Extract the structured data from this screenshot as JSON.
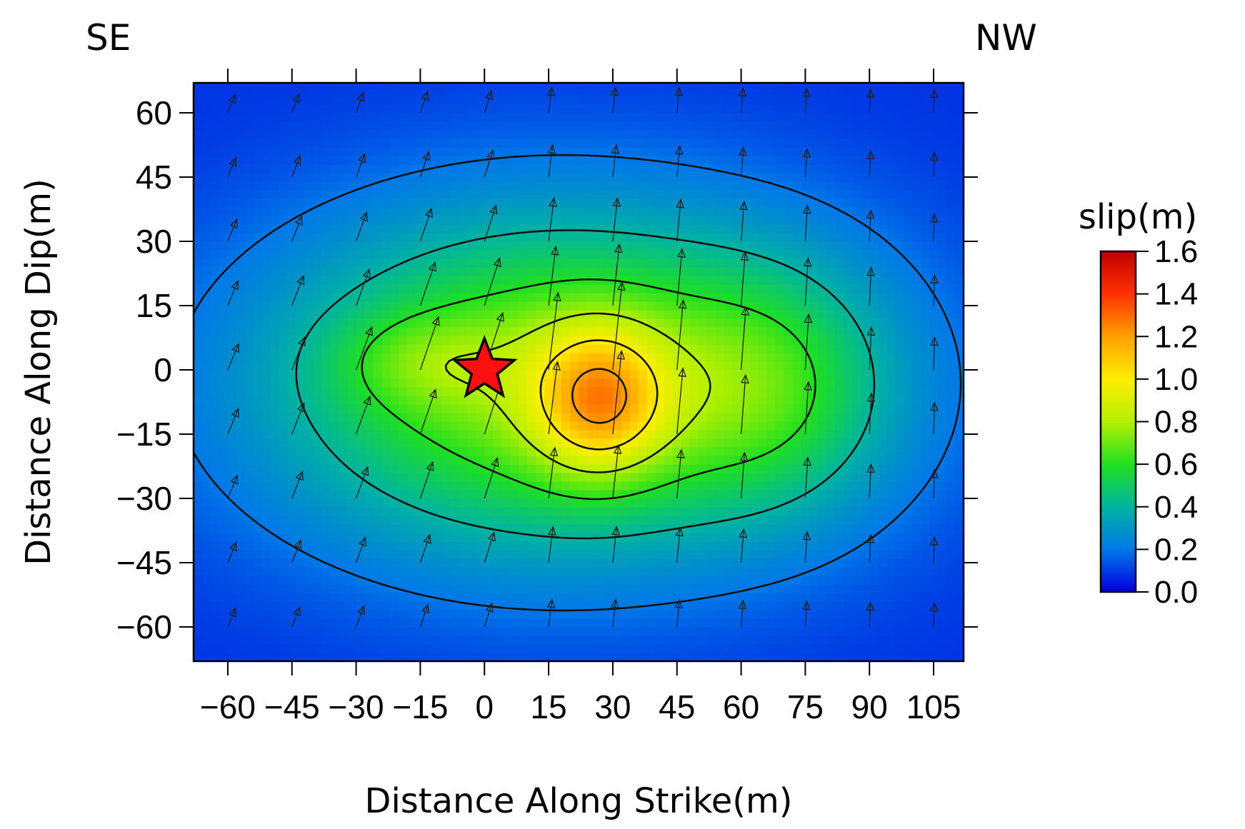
{
  "chart_data": {
    "type": "heatmap",
    "corner_left": "SE",
    "corner_right": "NW",
    "xlabel": "Distance Along Strike(m)",
    "ylabel": "Distance Along Dip(m)",
    "xlim": [
      -68,
      112
    ],
    "ylim": [
      -68,
      67
    ],
    "xticks": [
      -60,
      -45,
      -30,
      -15,
      0,
      15,
      30,
      45,
      60,
      75,
      90,
      105
    ],
    "xtick_labels": [
      "−60",
      "−45",
      "−30",
      "−15",
      "0",
      "15",
      "30",
      "45",
      "60",
      "75",
      "90",
      "105"
    ],
    "yticks": [
      60,
      45,
      30,
      15,
      0,
      -15,
      -30,
      -45,
      -60
    ],
    "ytick_labels": [
      "60",
      "45",
      "30",
      "15",
      "0",
      "−15",
      "−30",
      "−45",
      "−60"
    ],
    "colorbar": {
      "title": "slip(m)",
      "ticks": [
        1.6,
        1.4,
        1.2,
        1.0,
        0.8,
        0.6,
        0.4,
        0.2,
        0.0
      ],
      "tick_labels": [
        "1.6",
        "1.4",
        "1.2",
        "1.0",
        "0.8",
        "0.6",
        "0.4",
        "0.2",
        "0.0"
      ],
      "range": [
        0.0,
        1.6
      ],
      "colors": [
        "#0000e0",
        "#0078e8",
        "#00b4a0",
        "#20e020",
        "#b4f000",
        "#ffee00",
        "#ffa000",
        "#ff3000",
        "#c00000"
      ]
    },
    "contour_levels": [
      0.2,
      0.4,
      0.6,
      0.8,
      1.0,
      1.2
    ],
    "hypocenter": {
      "x": 0,
      "y": 0,
      "marker": "star",
      "color": "#ff1010"
    },
    "slip_peak": {
      "x": 27,
      "y": -7,
      "value": 1.35
    },
    "rake_grid": {
      "x": [
        -60,
        -45,
        -30,
        -15,
        0,
        15,
        30,
        45,
        60,
        75,
        90,
        105
      ],
      "y": [
        60,
        45,
        30,
        15,
        0,
        -15,
        -30,
        -45,
        -60
      ]
    }
  }
}
